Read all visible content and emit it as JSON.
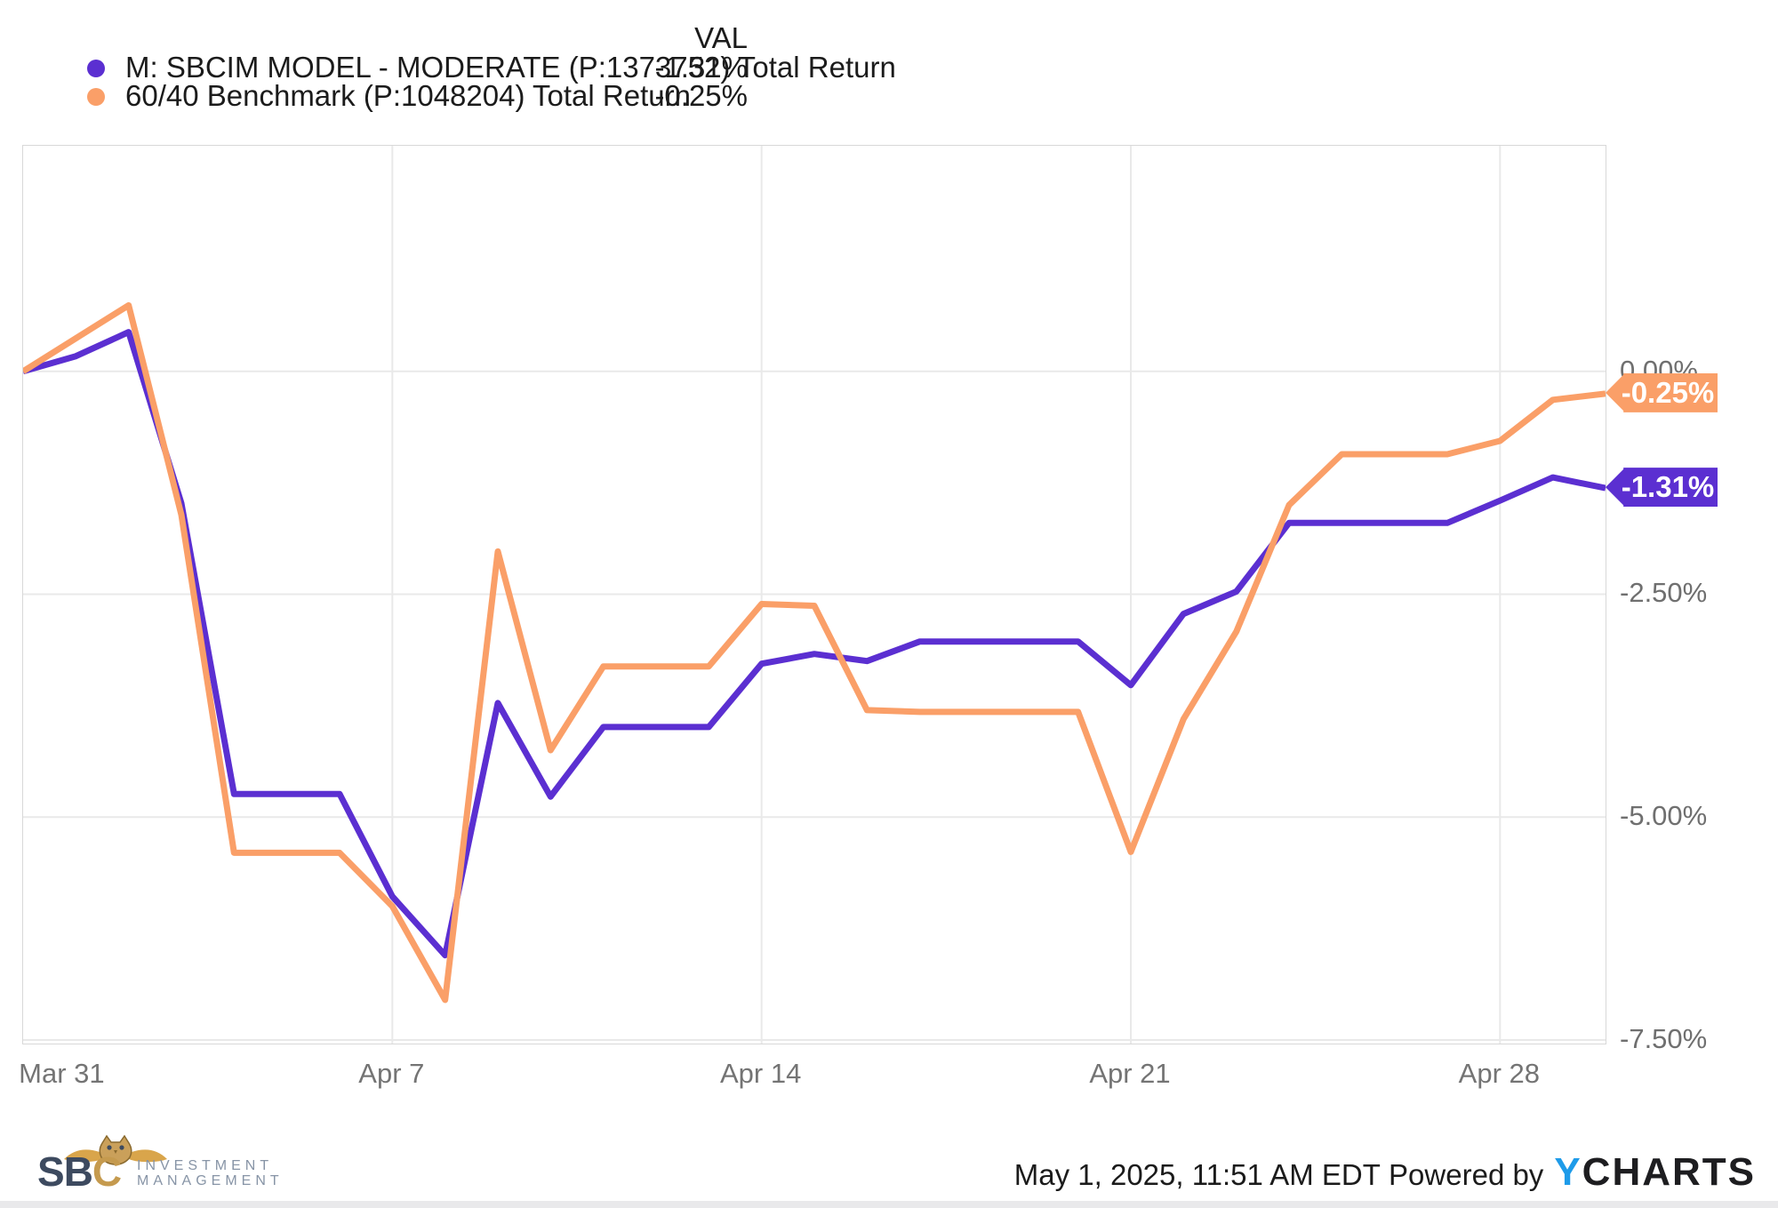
{
  "legend": {
    "val_header": "VAL",
    "rows": [
      {
        "label": "M: SBCIM MODEL - MODERATE (P:1373752) Total Return",
        "value": "-1.31%",
        "color": "#5b2fd1"
      },
      {
        "label": "60/40 Benchmark (P:1048204) Total Return",
        "value": "-0.25%",
        "color": "#fa9f68"
      }
    ]
  },
  "chart_data": {
    "type": "line",
    "title": "",
    "xlabel": "",
    "ylabel": "",
    "grid": true,
    "legend_position": "top-left",
    "x": [
      "Mar 31",
      "Apr 1",
      "Apr 2",
      "Apr 3",
      "Apr 4",
      "Apr 5",
      "Apr 6",
      "Apr 7",
      "Apr 8",
      "Apr 9",
      "Apr 10",
      "Apr 11",
      "Apr 12",
      "Apr 13",
      "Apr 14",
      "Apr 15",
      "Apr 16",
      "Apr 17",
      "Apr 18",
      "Apr 19",
      "Apr 20",
      "Apr 21",
      "Apr 22",
      "Apr 23",
      "Apr 24",
      "Apr 25",
      "Apr 26",
      "Apr 27",
      "Apr 28",
      "Apr 29",
      "Apr 30"
    ],
    "series": [
      {
        "name": "M: SBCIM MODEL - MODERATE (P:1373752) Total Return",
        "color": "#5b2fd1",
        "values": [
          0.0,
          0.17,
          0.44,
          -1.48,
          -4.74,
          -4.74,
          -4.74,
          -5.89,
          -6.55,
          -3.72,
          -4.77,
          -3.99,
          -3.99,
          -3.99,
          -3.28,
          -3.17,
          -3.25,
          -3.03,
          -3.03,
          -3.03,
          -3.03,
          -3.52,
          -2.72,
          -2.47,
          -1.7,
          -1.7,
          -1.7,
          -1.7,
          -1.45,
          -1.19,
          -1.31
        ]
      },
      {
        "name": "60/40 Benchmark (P:1048204) Total Return",
        "color": "#fa9f68",
        "values": [
          0.0,
          0.37,
          0.74,
          -1.61,
          -5.4,
          -5.4,
          -5.4,
          -6.0,
          -7.05,
          -2.02,
          -4.25,
          -3.31,
          -3.31,
          -3.31,
          -2.61,
          -2.63,
          -3.8,
          -3.82,
          -3.82,
          -3.82,
          -3.82,
          -5.39,
          -3.9,
          -2.92,
          -1.5,
          -0.93,
          -0.93,
          -0.93,
          -0.78,
          -0.32,
          -0.25
        ]
      }
    ],
    "ylim": [
      -7.54,
      2.53
    ],
    "yticks": [
      {
        "value": 0.0,
        "label": "0.00%"
      },
      {
        "value": -2.5,
        "label": "-2.50%"
      },
      {
        "value": -5.0,
        "label": "-5.00%"
      },
      {
        "value": -7.5,
        "label": "-7.50%"
      }
    ],
    "xticks": [
      {
        "index": 0,
        "label": "Mar 31"
      },
      {
        "index": 7,
        "label": "Apr 7"
      },
      {
        "index": 14,
        "label": "Apr 14"
      },
      {
        "index": 21,
        "label": "Apr 21"
      },
      {
        "index": 28,
        "label": "Apr 28"
      }
    ],
    "end_tags": [
      {
        "label": "-0.25%",
        "value": -0.25,
        "color": "#fa9f68"
      },
      {
        "label": "-1.31%",
        "value": -1.31,
        "color": "#5b2fd1"
      }
    ]
  },
  "colors": {
    "grid": "#e9e9e9",
    "plot_border": "#d8d8d8",
    "axis_text": "#6f6f6f",
    "brand_blue": "#1e9be9",
    "logo_slate": "#3d4a5f",
    "logo_gold": "#c59a4e"
  },
  "footer": {
    "timestamp": "May 1, 2025, 11:51 AM EDT",
    "powered_by": "Powered by",
    "brand": {
      "y": "Y",
      "charts": "CHARTS"
    },
    "logo": {
      "s": "S",
      "b": "B",
      "c": "C",
      "line1": "INVESTMENT",
      "line2": "MANAGEMENT"
    }
  }
}
